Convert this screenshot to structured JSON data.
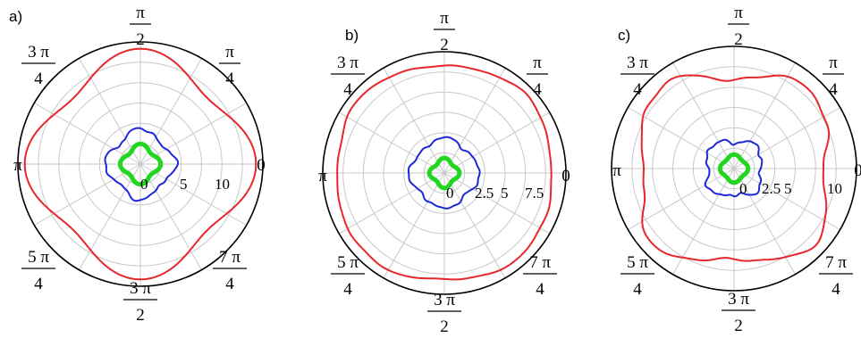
{
  "chart_data": [
    {
      "type": "polar",
      "panel_label": "a)",
      "angle_labels": [
        {
          "id": "0",
          "num": "0",
          "den": ""
        },
        {
          "id": "pi4",
          "num": "π",
          "den": "4"
        },
        {
          "id": "pi2",
          "num": "π",
          "den": "2"
        },
        {
          "id": "3pi4",
          "num": "3 π",
          "den": "4"
        },
        {
          "id": "pi",
          "num": "π",
          "den": ""
        },
        {
          "id": "5pi4",
          "num": "5 π",
          "den": "4"
        },
        {
          "id": "3pi2",
          "num": "3 π",
          "den": "2"
        },
        {
          "id": "7pi4",
          "num": "7 π",
          "den": "4"
        }
      ],
      "radial_ticks": [
        {
          "value": 0,
          "label": "0"
        },
        {
          "value": 5,
          "label": "5"
        },
        {
          "value": 10,
          "label": "10"
        }
      ],
      "rmax": 16,
      "grid_rings": 6,
      "grid_spokes": 12,
      "grid": true,
      "series": [
        {
          "color": "#e8262b",
          "base": 13.7,
          "amp": 1.4,
          "harmonic": 4,
          "phase": 0,
          "noise": 0.0,
          "width": 2
        },
        {
          "color": "#1f28d6",
          "base": 4.2,
          "amp": 0.5,
          "harmonic": 4,
          "phase": 0,
          "noise": 0.25,
          "width": 2
        },
        {
          "color": "#22d622",
          "base": 2.3,
          "amp": 0.35,
          "harmonic": 4,
          "phase": 0,
          "noise": 0.0,
          "width": 5
        }
      ]
    },
    {
      "type": "polar",
      "panel_label": "b)",
      "angle_labels": [
        {
          "id": "0",
          "num": "0",
          "den": ""
        },
        {
          "id": "pi4",
          "num": "π",
          "den": "4"
        },
        {
          "id": "pi2",
          "num": "π",
          "den": "2"
        },
        {
          "id": "3pi4",
          "num": "3 π",
          "den": "4"
        },
        {
          "id": "pi",
          "num": "π",
          "den": ""
        },
        {
          "id": "5pi4",
          "num": "5 π",
          "den": "4"
        },
        {
          "id": "3pi2",
          "num": "3 π",
          "den": "2"
        },
        {
          "id": "7pi4",
          "num": "7 π",
          "den": "4"
        }
      ],
      "radial_ticks": [
        {
          "value": 0,
          "label": "0"
        },
        {
          "value": 2.5,
          "label": "2.5"
        },
        {
          "value": 5,
          "label": "5"
        },
        {
          "value": 7.5,
          "label": "7.5"
        }
      ],
      "rmax": 12.5,
      "grid_rings": 6,
      "grid_spokes": 12,
      "grid": true,
      "series": [
        {
          "color": "#e8262b",
          "base": 11.3,
          "amp": -0.3,
          "harmonic": 4,
          "phase": 0,
          "noise": 0.15,
          "width": 2
        },
        {
          "color": "#1f28d6",
          "base": 3.4,
          "amp": 0.25,
          "harmonic": 4,
          "phase": 0,
          "noise": 0.2,
          "width": 2
        },
        {
          "color": "#22d622",
          "base": 1.35,
          "amp": 0.2,
          "harmonic": 4,
          "phase": 0,
          "noise": 0.0,
          "width": 5
        }
      ]
    },
    {
      "type": "polar",
      "panel_label": "c)",
      "angle_labels": [
        {
          "id": "0",
          "num": "0",
          "den": ""
        },
        {
          "id": "pi4",
          "num": "π",
          "den": "4"
        },
        {
          "id": "pi2",
          "num": "π",
          "den": "2"
        },
        {
          "id": "3pi4",
          "num": "3 π",
          "den": "4"
        },
        {
          "id": "pi",
          "num": "π",
          "den": ""
        },
        {
          "id": "5pi4",
          "num": "5 π",
          "den": "4"
        },
        {
          "id": "3pi2",
          "num": "3 π",
          "den": "2"
        },
        {
          "id": "7pi4",
          "num": "7 π",
          "den": "4"
        }
      ],
      "radial_ticks": [
        {
          "value": 0,
          "label": "0"
        },
        {
          "value": 2.5,
          "label": "2.5"
        },
        {
          "value": 5,
          "label": "5"
        },
        {
          "value": 10,
          "label": "10"
        }
      ],
      "rmax": 13.5,
      "grid_rings": 6,
      "grid_spokes": 12,
      "grid": true,
      "series": [
        {
          "color": "#e8262b",
          "base": 11.0,
          "amp": -1.1,
          "harmonic": 4,
          "phase": 0,
          "noise": 0.35,
          "width": 2
        },
        {
          "color": "#1f28d6",
          "base": 3.2,
          "amp": -0.35,
          "harmonic": 4,
          "phase": 0,
          "noise": 0.3,
          "width": 2
        },
        {
          "color": "#22d622",
          "base": 1.4,
          "amp": 0.15,
          "harmonic": 4,
          "phase": 0,
          "noise": 0.0,
          "width": 5
        }
      ]
    }
  ]
}
